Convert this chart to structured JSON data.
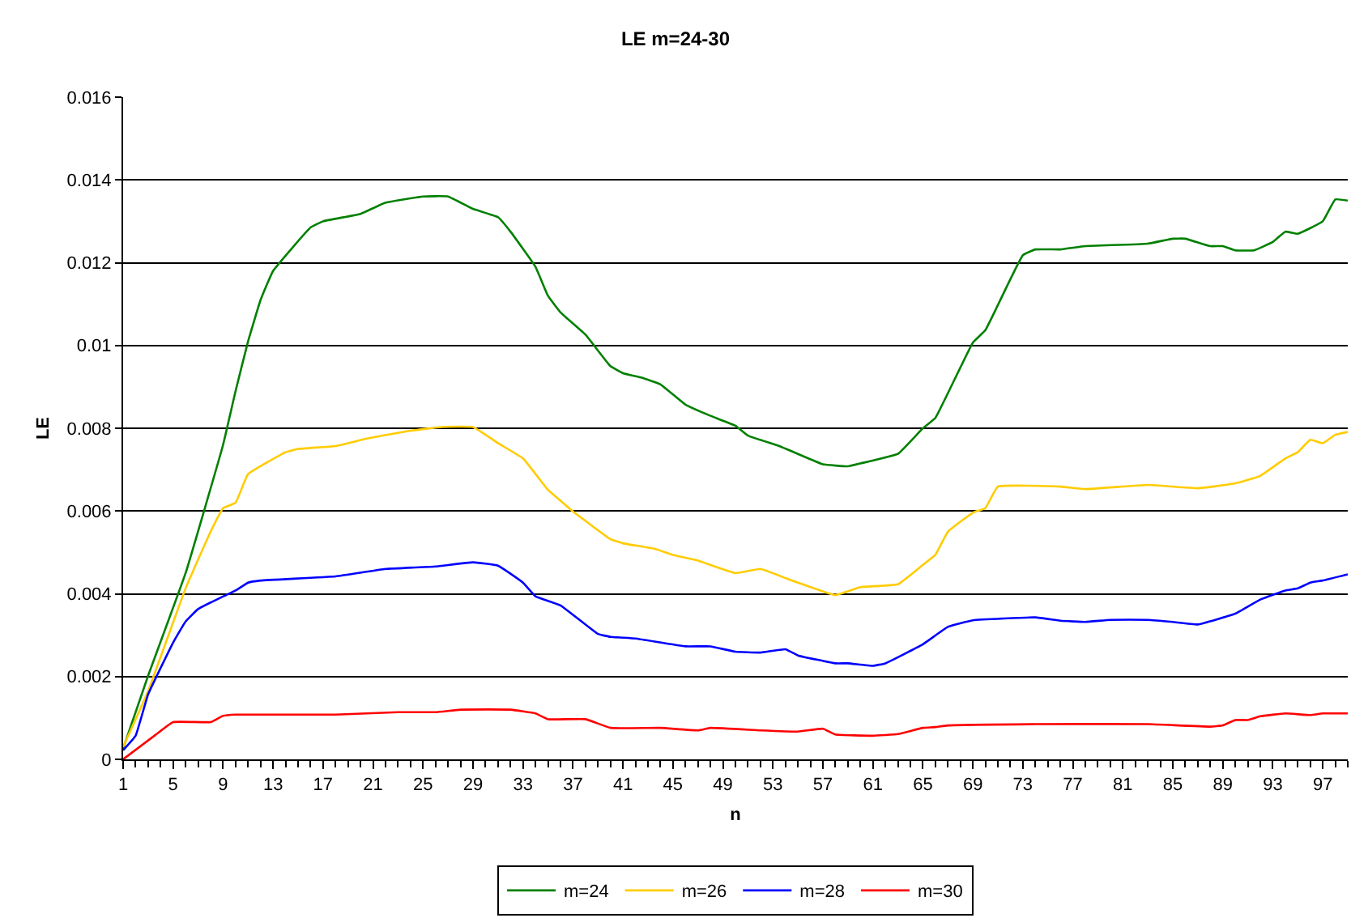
{
  "chart_data": {
    "type": "line",
    "title": "LE m=24-30",
    "xlabel": "n",
    "ylabel": "LE",
    "xlim": [
      1,
      99
    ],
    "xticks": [
      1,
      5,
      9,
      13,
      17,
      21,
      25,
      29,
      33,
      37,
      41,
      45,
      49,
      53,
      57,
      61,
      65,
      69,
      73,
      77,
      81,
      85,
      89,
      93,
      97
    ],
    "ylim": [
      0,
      0.016
    ],
    "yticks": [
      0,
      0.002,
      0.004,
      0.006,
      0.008,
      0.01,
      0.012,
      0.014,
      0.016
    ],
    "grid": "y",
    "legend": "bottom",
    "marker": "none",
    "line_style": "solid",
    "series": [
      {
        "name": "m=24",
        "color": "#008000",
        "x": [
          1,
          3,
          6,
          9,
          10,
          11,
          12,
          13,
          16,
          17,
          20,
          22,
          25,
          27,
          29,
          31,
          32,
          34,
          35,
          36,
          38,
          40,
          41,
          42.5,
          44,
          46,
          48,
          50,
          51,
          53.5,
          55,
          57,
          59,
          60,
          63,
          65,
          66,
          69,
          70,
          73,
          74,
          76,
          78,
          83,
          85,
          86,
          88,
          89,
          90,
          91.5,
          93,
          94,
          95,
          97,
          98,
          99
        ],
        "values": [
          0.00026,
          0.00202,
          0.0045,
          0.0076,
          0.0089,
          0.0101,
          0.0111,
          0.0118,
          0.01285,
          0.013,
          0.01318,
          0.01345,
          0.0136,
          0.0136,
          0.0133,
          0.0131,
          0.01275,
          0.0119,
          0.0112,
          0.0108,
          0.01026,
          0.0095,
          0.00933,
          0.00922,
          0.00906,
          0.00857,
          0.0083,
          0.00806,
          0.00782,
          0.00757,
          0.00738,
          0.00713,
          0.00708,
          0.00715,
          0.00738,
          0.008,
          0.00825,
          0.01007,
          0.01037,
          0.01218,
          0.01232,
          0.01232,
          0.0124,
          0.01246,
          0.01258,
          0.01258,
          0.0124,
          0.0124,
          0.0123,
          0.0123,
          0.0125,
          0.01275,
          0.0127,
          0.013,
          0.01353,
          0.0135
        ]
      },
      {
        "name": "m=26",
        "color": "#ffcc00",
        "x": [
          1,
          3,
          6,
          8,
          9,
          10,
          11,
          14,
          15,
          18,
          20.5,
          24,
          26.5,
          29,
          31,
          33,
          35,
          36,
          37,
          40,
          41,
          43.5,
          45,
          47,
          50,
          52,
          54,
          55,
          58,
          60,
          63,
          65,
          66,
          67,
          69,
          70,
          71,
          76,
          78,
          83,
          87,
          90,
          92,
          94,
          95,
          96,
          97,
          98,
          99
        ],
        "values": [
          0.0003,
          0.00165,
          0.00413,
          0.0055,
          0.00607,
          0.0062,
          0.00689,
          0.00742,
          0.0075,
          0.00757,
          0.00775,
          0.00794,
          0.00803,
          0.00803,
          0.00764,
          0.00727,
          0.00651,
          0.00625,
          0.00599,
          0.00532,
          0.00522,
          0.00509,
          0.00494,
          0.0048,
          0.0045,
          0.0046,
          0.00438,
          0.00427,
          0.00397,
          0.00416,
          0.00423,
          0.0047,
          0.00494,
          0.0055,
          0.00596,
          0.00607,
          0.00659,
          0.00659,
          0.00653,
          0.00663,
          0.00655,
          0.00667,
          0.00685,
          0.00727,
          0.00742,
          0.00772,
          0.00764,
          0.00784,
          0.00791
        ]
      },
      {
        "name": "m=28",
        "color": "#0000ff",
        "x": [
          1,
          2,
          3,
          5,
          6,
          7,
          8,
          10,
          11,
          12,
          18,
          22,
          26,
          29,
          31,
          33,
          34,
          36,
          39,
          40,
          42,
          46,
          48,
          50,
          52,
          54,
          55,
          58,
          59,
          61,
          62,
          65,
          67,
          69,
          74,
          76,
          78,
          80,
          83,
          85,
          87,
          90,
          92,
          94,
          95,
          96,
          97,
          99
        ],
        "values": [
          0.00022,
          0.00057,
          0.00157,
          0.00282,
          0.00333,
          0.00363,
          0.00379,
          0.00408,
          0.00427,
          0.00432,
          0.00442,
          0.0046,
          0.00466,
          0.00476,
          0.00468,
          0.00427,
          0.00394,
          0.00372,
          0.00303,
          0.00296,
          0.00292,
          0.00273,
          0.00273,
          0.0026,
          0.00258,
          0.00266,
          0.00251,
          0.00232,
          0.00232,
          0.00226,
          0.00232,
          0.00278,
          0.0032,
          0.00336,
          0.00343,
          0.00335,
          0.00332,
          0.00337,
          0.00337,
          0.00332,
          0.00326,
          0.00352,
          0.00386,
          0.00408,
          0.00413,
          0.00427,
          0.00432,
          0.00447
        ]
      },
      {
        "name": "m=30",
        "color": "#ff0000",
        "x": [
          1,
          3.5,
          5,
          8,
          9,
          10,
          18,
          23,
          26,
          28,
          32,
          34,
          35,
          38,
          40,
          44,
          47,
          48,
          52,
          55,
          57,
          58,
          61,
          63,
          65,
          66,
          67,
          74,
          83,
          88,
          89,
          90,
          91,
          92,
          94,
          96,
          97,
          99
        ],
        "values": [
          0,
          0.00057,
          0.0009,
          0.0009,
          0.00105,
          0.00108,
          0.00108,
          0.00114,
          0.00114,
          0.0012,
          0.0012,
          0.00111,
          0.00097,
          0.00097,
          0.00076,
          0.00076,
          0.0007,
          0.00076,
          0.0007,
          0.00067,
          0.00074,
          0.0006,
          0.00057,
          0.00061,
          0.00076,
          0.00078,
          0.00082,
          0.00085,
          0.00085,
          0.00079,
          0.00082,
          0.00095,
          0.00095,
          0.00104,
          0.00111,
          0.00107,
          0.00111,
          0.00111
        ]
      }
    ]
  }
}
